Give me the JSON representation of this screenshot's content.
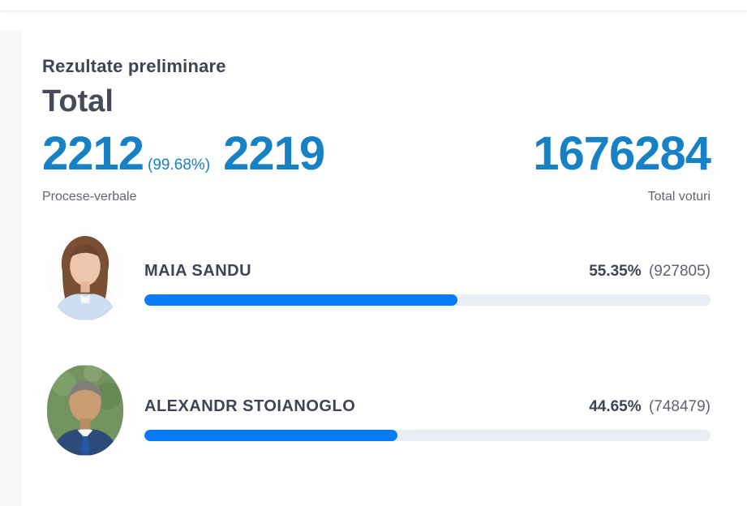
{
  "header": {
    "title": "Rezultate preliminare",
    "section": "Total"
  },
  "summary": {
    "protocols": {
      "counted": "2212",
      "percent": "(99.68%)",
      "total": "2219",
      "label": "Procese-verbale"
    },
    "votes": {
      "value": "1676284",
      "label": "Total voturi"
    }
  },
  "candidates": [
    {
      "name": "MAIA SANDU",
      "percent": "55.35%",
      "votes": "(927805)",
      "bar_percent": 55.35
    },
    {
      "name": "ALEXANDR STOIANOGLO",
      "percent": "44.65%",
      "votes": "(748479)",
      "bar_percent": 44.65
    }
  ],
  "colors": {
    "accent_blue": "#1781c5",
    "bar_fill": "#0a7bf8",
    "bar_track": "#e9eef6",
    "dark_text": "#3e4453",
    "gray_text": "#63666f"
  }
}
